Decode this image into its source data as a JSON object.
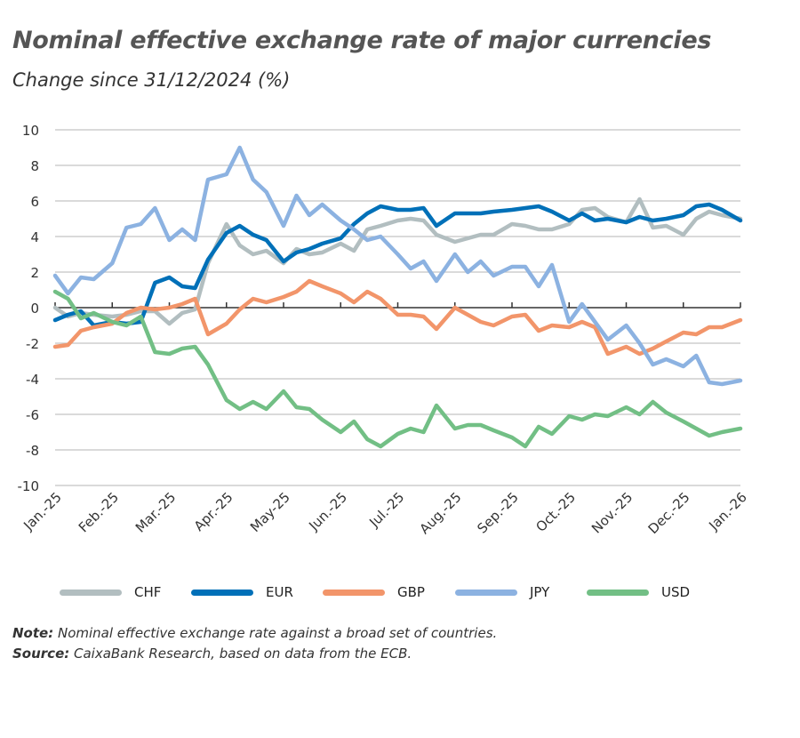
{
  "title": "Nominal effective exchange rate of major currencies",
  "subtitle": "Change since 31/12/2024 (%)",
  "note_label": "Note:",
  "note_text": " Nominal effective exchange rate against a broad set of countries.",
  "source_label": "Source:",
  "source_text": " CaixaBank Research, based on data from the ECB.",
  "chart_data": {
    "type": "line",
    "title": "Nominal effective exchange rate of major currencies",
    "subtitle": "Change since 31/12/2024 (%)",
    "xlabel": "",
    "ylabel": "",
    "ylim": [
      -10,
      10
    ],
    "yticks": [
      10,
      8,
      6,
      4,
      2,
      0,
      -2,
      -4,
      -6,
      -8,
      -10
    ],
    "xlim": [
      "2025-01-01",
      "2026-01-01"
    ],
    "xtick_labels": [
      "Jan.-25",
      "Feb.-25",
      "Mar.-25",
      "Apr.-25",
      "May-25",
      "Jun.-25",
      "Jul.-25",
      "Aug.-25",
      "Sep.-25",
      "Oct.-25",
      "Nov.-25",
      "Dec.-25",
      "Jan.-26"
    ],
    "grid": "horizontal",
    "legend": "bottom",
    "x": [
      "2025-01-01",
      "2025-01-08",
      "2025-01-15",
      "2025-01-22",
      "2025-02-01",
      "2025-02-08",
      "2025-02-15",
      "2025-02-22",
      "2025-03-01",
      "2025-03-08",
      "2025-03-15",
      "2025-03-22",
      "2025-04-01",
      "2025-04-08",
      "2025-04-15",
      "2025-04-22",
      "2025-05-01",
      "2025-05-08",
      "2025-05-15",
      "2025-05-22",
      "2025-06-01",
      "2025-06-08",
      "2025-06-15",
      "2025-06-22",
      "2025-07-01",
      "2025-07-08",
      "2025-07-15",
      "2025-07-22",
      "2025-08-01",
      "2025-08-08",
      "2025-08-15",
      "2025-08-22",
      "2025-09-01",
      "2025-09-08",
      "2025-09-15",
      "2025-09-22",
      "2025-10-01",
      "2025-10-08",
      "2025-10-15",
      "2025-10-22",
      "2025-11-01",
      "2025-11-08",
      "2025-11-15",
      "2025-11-22",
      "2025-12-01",
      "2025-12-08",
      "2025-12-15",
      "2025-12-22",
      "2026-01-01"
    ],
    "series": [
      {
        "name": "CHF",
        "color": "#b2bec0",
        "values": [
          0.0,
          -0.5,
          -0.3,
          -0.4,
          -0.5,
          -0.4,
          -0.2,
          -0.2,
          -0.9,
          -0.3,
          -0.1,
          2.5,
          4.7,
          3.5,
          3.0,
          3.2,
          2.5,
          3.3,
          3.0,
          3.1,
          3.6,
          3.2,
          4.4,
          4.6,
          4.9,
          5.0,
          4.9,
          4.1,
          3.7,
          3.9,
          4.1,
          4.1,
          4.7,
          4.6,
          4.4,
          4.4,
          4.7,
          5.5,
          5.6,
          5.1,
          4.8,
          6.1,
          4.5,
          4.6,
          4.1,
          5.0,
          5.4,
          5.2,
          5.0
        ]
      },
      {
        "name": "EUR",
        "color": "#0070b8",
        "values": [
          -0.7,
          -0.4,
          -0.2,
          -1.0,
          -0.8,
          -0.9,
          -0.8,
          1.4,
          1.7,
          1.2,
          1.1,
          2.7,
          4.2,
          4.6,
          4.1,
          3.8,
          2.6,
          3.1,
          3.3,
          3.6,
          3.9,
          4.7,
          5.3,
          5.7,
          5.5,
          5.5,
          5.6,
          4.6,
          5.3,
          5.3,
          5.3,
          5.4,
          5.5,
          5.6,
          5.7,
          5.4,
          4.9,
          5.3,
          4.9,
          5.0,
          4.8,
          5.1,
          4.9,
          5.0,
          5.2,
          5.7,
          5.8,
          5.5,
          4.9
        ]
      },
      {
        "name": "GBP",
        "color": "#f2956a",
        "values": [
          -2.2,
          -2.1,
          -1.3,
          -1.1,
          -0.9,
          -0.3,
          0.0,
          -0.1,
          0.0,
          0.2,
          0.5,
          -1.5,
          -0.9,
          -0.1,
          0.5,
          0.3,
          0.6,
          0.9,
          1.5,
          1.2,
          0.8,
          0.3,
          0.9,
          0.5,
          -0.4,
          -0.4,
          -0.5,
          -1.2,
          0.0,
          -0.4,
          -0.8,
          -1.0,
          -0.5,
          -0.4,
          -1.3,
          -1.0,
          -1.1,
          -0.8,
          -1.1,
          -2.6,
          -2.2,
          -2.6,
          -2.3,
          -1.9,
          -1.4,
          -1.5,
          -1.1,
          -1.1,
          -0.7
        ]
      },
      {
        "name": "JPY",
        "color": "#8cb2e1",
        "values": [
          1.8,
          0.8,
          1.7,
          1.6,
          2.5,
          4.5,
          4.7,
          5.6,
          3.8,
          4.4,
          3.8,
          7.2,
          7.5,
          9.0,
          7.2,
          6.5,
          4.6,
          6.3,
          5.2,
          5.8,
          4.9,
          4.4,
          3.8,
          4.0,
          3.0,
          2.2,
          2.6,
          1.5,
          3.0,
          2.0,
          2.6,
          1.8,
          2.3,
          2.3,
          1.2,
          2.4,
          -0.8,
          0.2,
          -0.8,
          -1.8,
          -1.0,
          -2.0,
          -3.2,
          -2.9,
          -3.3,
          -2.7,
          -4.2,
          -4.3,
          -4.1
        ]
      },
      {
        "name": "USD",
        "color": "#72bf85",
        "values": [
          0.9,
          0.5,
          -0.6,
          -0.3,
          -0.8,
          -1.0,
          -0.5,
          -2.5,
          -2.6,
          -2.3,
          -2.2,
          -3.2,
          -5.2,
          -5.7,
          -5.3,
          -5.7,
          -4.7,
          -5.6,
          -5.7,
          -6.3,
          -7.0,
          -6.4,
          -7.4,
          -7.8,
          -7.1,
          -6.8,
          -7.0,
          -5.5,
          -6.8,
          -6.6,
          -6.6,
          -6.9,
          -7.3,
          -7.8,
          -6.7,
          -7.1,
          -6.1,
          -6.3,
          -6.0,
          -6.1,
          -5.6,
          -6.0,
          -5.3,
          -5.9,
          -6.4,
          -6.8,
          -7.2,
          -7.0,
          -6.8
        ]
      }
    ]
  }
}
